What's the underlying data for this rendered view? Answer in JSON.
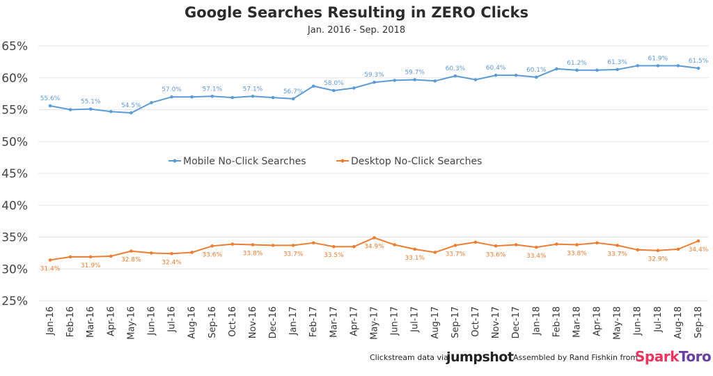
{
  "chart_data": {
    "type": "line",
    "title": "Google Searches Resulting in ZERO Clicks",
    "subtitle": "Jan. 2016 - Sep. 2018",
    "xlabel": "",
    "ylabel": "",
    "ylim": [
      25,
      65
    ],
    "yticks": [
      "25%",
      "30%",
      "35%",
      "40%",
      "45%",
      "50%",
      "55%",
      "60%",
      "65%"
    ],
    "grid": "horizontal",
    "legend_position": "center",
    "categories": [
      "Jan-16",
      "Feb-16",
      "Mar-16",
      "Apr-16",
      "May-16",
      "Jun-16",
      "Jul-16",
      "Aug-16",
      "Sep-16",
      "Oct-16",
      "Nov-16",
      "Dec-16",
      "Jan-17",
      "Feb-17",
      "Mar-17",
      "Apr-17",
      "May-17",
      "Jun-17",
      "Jul-17",
      "Aug-17",
      "Sep-17",
      "Oct-17",
      "Nov-17",
      "Dec-17",
      "Jan-18",
      "Feb-18",
      "Mar-18",
      "Apr-18",
      "May-18",
      "Jun-18",
      "Jul-18",
      "Aug-18",
      "Sep-18"
    ],
    "series": [
      {
        "name": "Mobile No-Click Searches",
        "color": "#5b9bd5",
        "values": [
          55.6,
          55.0,
          55.1,
          54.7,
          54.5,
          56.1,
          57.0,
          57.0,
          57.1,
          56.9,
          57.1,
          56.9,
          56.7,
          58.7,
          58.0,
          58.4,
          59.3,
          59.6,
          59.7,
          59.5,
          60.3,
          59.7,
          60.4,
          60.4,
          60.1,
          61.4,
          61.2,
          61.2,
          61.3,
          61.9,
          61.9,
          61.9,
          61.5
        ],
        "labels": [
          "55.6%",
          "",
          "55.1%",
          "",
          "54.5%",
          "",
          "57.0%",
          "",
          "57.1%",
          "",
          "57.1%",
          "",
          "56.7%",
          "",
          "58.0%",
          "",
          "59.3%",
          "",
          "59.7%",
          "",
          "60.3%",
          "",
          "60.4%",
          "",
          "60.1%",
          "",
          "61.2%",
          "",
          "61.3%",
          "",
          "61.9%",
          "",
          "61.5%"
        ]
      },
      {
        "name": "Desktop No-Click Searches",
        "color": "#ed7d31",
        "values": [
          31.4,
          31.9,
          31.9,
          32.0,
          32.8,
          32.5,
          32.4,
          32.6,
          33.6,
          33.9,
          33.8,
          33.7,
          33.7,
          34.1,
          33.5,
          33.5,
          34.9,
          33.8,
          33.1,
          32.6,
          33.7,
          34.2,
          33.6,
          33.8,
          33.4,
          33.9,
          33.8,
          34.1,
          33.7,
          33.0,
          32.9,
          33.1,
          34.4
        ],
        "labels": [
          "31.4%",
          "",
          "31.9%",
          "",
          "32.8%",
          "",
          "32.4%",
          "",
          "33.6%",
          "",
          "33.8%",
          "",
          "33.7%",
          "",
          "33.5%",
          "",
          "34.9%",
          "",
          "33.1%",
          "",
          "33.7%",
          "",
          "33.6%",
          "",
          "33.4%",
          "",
          "33.8%",
          "",
          "33.7%",
          "",
          "32.9%",
          "",
          "34.4%"
        ]
      }
    ]
  },
  "footer": {
    "source_prefix": "Clickstream data via",
    "source_brand": "jumpshot",
    "credit_prefix": "Assembled by Rand Fishkin from",
    "credit_brand_part1": "Spark",
    "credit_brand_part2": "Toro"
  }
}
